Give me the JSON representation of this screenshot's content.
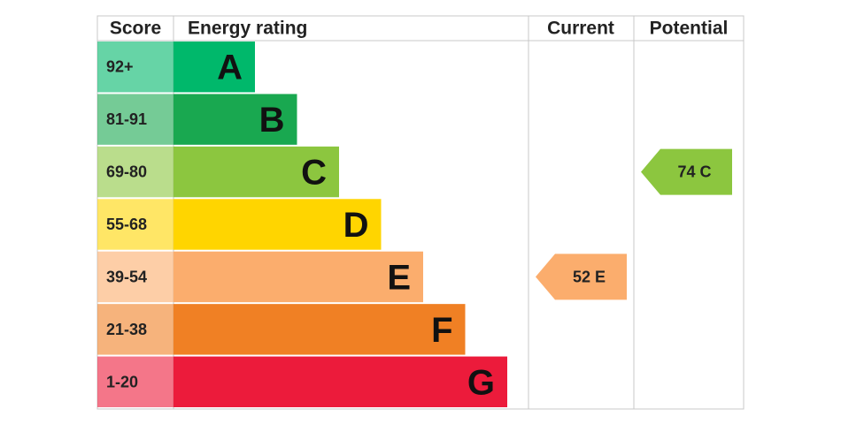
{
  "headers": {
    "score": "Score",
    "rating": "Energy rating",
    "current": "Current",
    "potential": "Potential"
  },
  "bands": [
    {
      "score": "92+",
      "letter": "A",
      "color": "#00b86b"
    },
    {
      "score": "81-91",
      "letter": "B",
      "color": "#19a850"
    },
    {
      "score": "69-80",
      "letter": "C",
      "color": "#8cc63f"
    },
    {
      "score": "55-68",
      "letter": "D",
      "color": "#ffd500"
    },
    {
      "score": "39-54",
      "letter": "E",
      "color": "#fbad6d"
    },
    {
      "score": "21-38",
      "letter": "F",
      "color": "#f08024"
    },
    {
      "score": "1-20",
      "letter": "G",
      "color": "#ec1b3b"
    }
  ],
  "current": {
    "label": "52 E"
  },
  "potential": {
    "label": "74 C"
  }
}
